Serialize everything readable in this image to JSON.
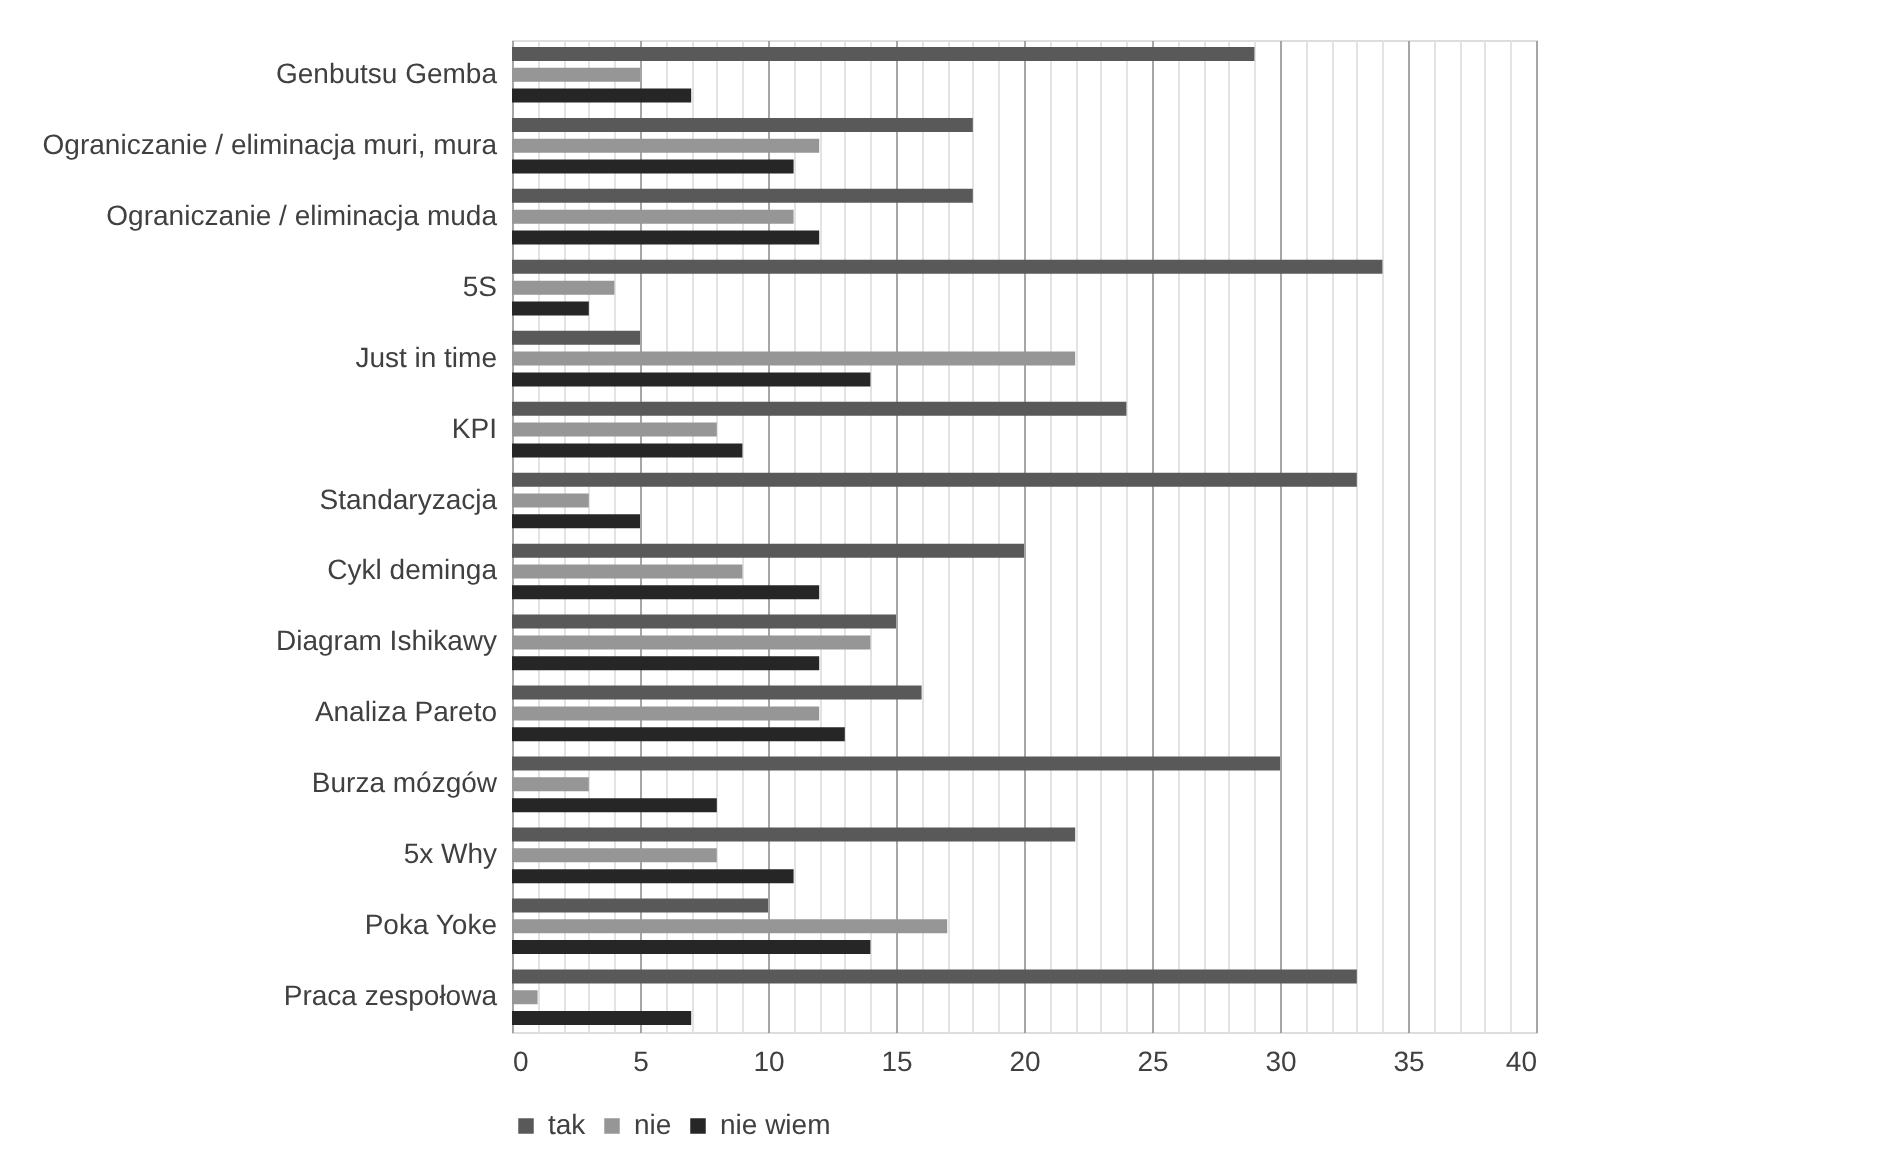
{
  "chart_data": {
    "type": "bar",
    "orientation": "horizontal",
    "categories": [
      "Genbutsu Gemba",
      "Ograniczanie / eliminacja muri, mura",
      "Ograniczanie / eliminacja muda",
      "5S",
      "Just in time",
      "KPI",
      "Standaryzacja",
      "Cykl deminga",
      "Diagram Ishikawy",
      "Analiza Pareto",
      "Burza mózgów",
      "5x Why",
      "Poka Yoke",
      "Praca zespołowa"
    ],
    "series": [
      {
        "name": "tak",
        "color": "#595959",
        "values": [
          29,
          18,
          18,
          34,
          5,
          24,
          33,
          20,
          15,
          16,
          30,
          22,
          10,
          33
        ]
      },
      {
        "name": "nie",
        "color": "#969696",
        "values": [
          5,
          12,
          11,
          4,
          22,
          8,
          3,
          9,
          14,
          12,
          3,
          8,
          17,
          1
        ]
      },
      {
        "name": "nie wiem",
        "color": "#262626",
        "values": [
          7,
          11,
          12,
          3,
          14,
          9,
          5,
          12,
          12,
          13,
          8,
          11,
          14,
          7
        ]
      }
    ],
    "xlim": [
      0,
      40
    ],
    "xticks": [
      0,
      {
        "value": 1,
        "label": null
      },
      {
        "value": 2,
        "label": null
      },
      {
        "value": 3,
        "label": null
      },
      {
        "value": 4,
        "label": null
      },
      5,
      {
        "value": 6,
        "label": null
      },
      {
        "value": 7,
        "label": null
      },
      {
        "value": 8,
        "label": null
      },
      {
        "value": 9,
        "label": null
      },
      10,
      {
        "value": 11,
        "label": null
      },
      {
        "value": 12,
        "label": null
      },
      {
        "value": 13,
        "label": null
      },
      {
        "value": 14,
        "label": null
      },
      15,
      {
        "value": 16,
        "label": null
      },
      {
        "value": 17,
        "label": null
      },
      {
        "value": 18,
        "label": null
      },
      {
        "value": 19,
        "label": null
      },
      20,
      {
        "value": 21,
        "label": null
      },
      {
        "value": 22,
        "label": null
      },
      {
        "value": 23,
        "label": null
      },
      {
        "value": 24,
        "label": null
      },
      25,
      {
        "value": 26,
        "label": null
      },
      {
        "value": 27,
        "label": null
      },
      {
        "value": 28,
        "label": null
      },
      {
        "value": 29,
        "label": null
      },
      30,
      {
        "value": 31,
        "label": null
      },
      {
        "value": 32,
        "label": null
      },
      {
        "value": 33,
        "label": null
      },
      {
        "value": 34,
        "label": null
      },
      35,
      {
        "value": 36,
        "label": null
      },
      {
        "value": 37,
        "label": null
      },
      {
        "value": 38,
        "label": null
      },
      {
        "value": 39,
        "label": null
      },
      40
    ],
    "grid": "x",
    "legend": "bottom"
  }
}
